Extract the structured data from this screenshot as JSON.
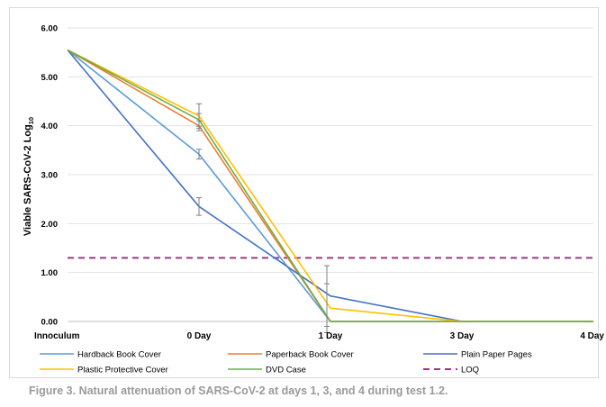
{
  "chart_data": {
    "type": "line",
    "ylabel": "Viable SARS-CoV-2 Log",
    "ylabel_sub": "10",
    "xlabel": "",
    "categories": [
      "Innoculum",
      "0 Day",
      "1 Day",
      "3 Day",
      "4 Day"
    ],
    "y_ticks": [
      "0.00",
      "1.00",
      "2.00",
      "3.00",
      "4.00",
      "5.00",
      "6.00"
    ],
    "ylim": [
      0,
      6
    ],
    "grid": true,
    "legend_position": "bottom",
    "series": [
      {
        "name": "Hardback Book Cover",
        "color": "#5b9bd5",
        "values": [
          5.55,
          3.42,
          0.0,
          0.0,
          0.0
        ],
        "error": [
          0,
          0.1,
          0,
          0,
          0
        ]
      },
      {
        "name": "Paperback Book Cover",
        "color": "#ed7d31",
        "values": [
          5.55,
          4.0,
          0.0,
          0.0,
          0.0
        ],
        "error": [
          0,
          0.1,
          0,
          0,
          0
        ]
      },
      {
        "name": "Plain Paper Pages",
        "color": "#4472c4",
        "values": [
          5.55,
          2.35,
          0.52,
          0.0,
          0.0
        ],
        "error": [
          0,
          0.18,
          0.62,
          0,
          0
        ]
      },
      {
        "name": "Plastic Protective Cover",
        "color": "#ffc000",
        "values": [
          5.55,
          4.2,
          0.27,
          0.0,
          0.0
        ],
        "error": [
          0,
          0.25,
          0.5,
          0,
          0
        ]
      },
      {
        "name": "DVD Case",
        "color": "#70ad47",
        "values": [
          5.55,
          4.12,
          0.0,
          0.0,
          0.0
        ],
        "error": [
          0,
          0.13,
          0,
          0,
          0
        ]
      }
    ],
    "reference_lines": [
      {
        "name": "LOQ",
        "value": 1.3,
        "color": "#9e3a7e",
        "style": "dashed"
      }
    ]
  },
  "caption": "Figure 3. Natural attenuation of SARS-CoV-2 at days 1, 3, and 4 during test 1.2."
}
